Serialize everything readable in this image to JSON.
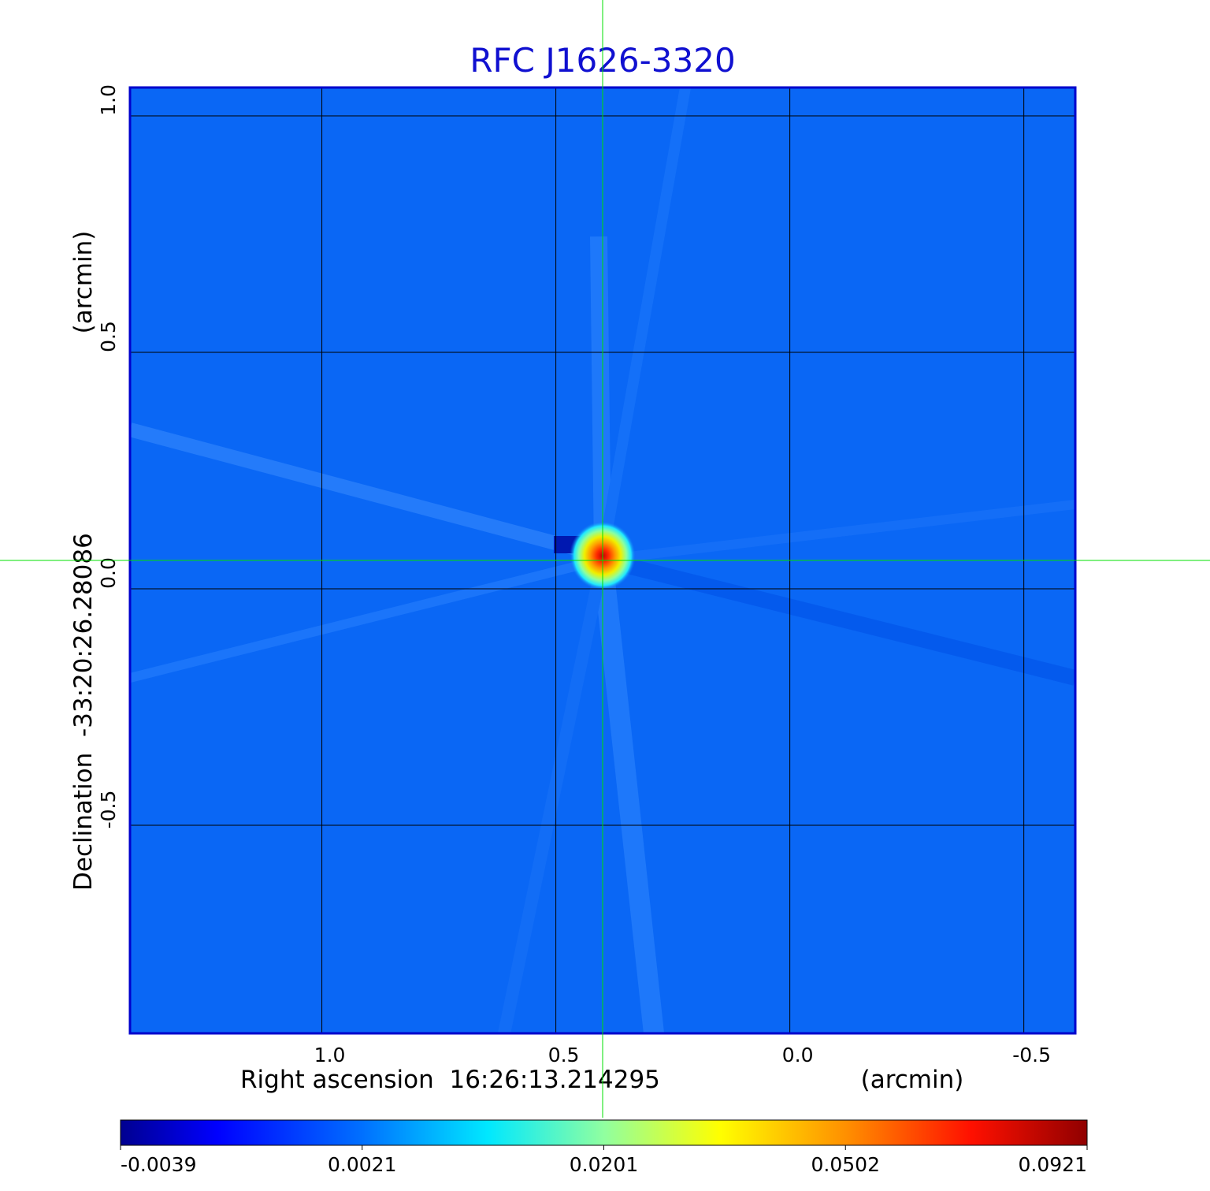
{
  "chart_data": {
    "type": "heatmap",
    "title": "RFC J1626-3320",
    "xlabel": "Right ascension  16:26:13.214295",
    "xunit": "(arcmin)",
    "ylabel": "Declination  -33:20:26.28086",
    "yunit": "(arcmin)",
    "x_ticks": [
      1.0,
      0.5,
      0.0,
      -0.5
    ],
    "x_tick_labels": [
      "1.0",
      "0.5",
      "0.0",
      "-0.5"
    ],
    "y_ticks": [
      1.0,
      0.5,
      0.0,
      -0.5
    ],
    "y_tick_labels": [
      "1.0",
      "0.5",
      "0.0",
      "-0.5"
    ],
    "x_range": [
      1.41,
      -0.61
    ],
    "y_range": [
      -0.94,
      1.06
    ],
    "grid": true,
    "crosshair": {
      "x": 0.4,
      "y": 0.06,
      "color": "#00e000"
    },
    "source_peak": {
      "x": 0.4,
      "y": 0.07,
      "value": 0.0921
    },
    "colorbar": {
      "colormap": "jet",
      "tick_labels": [
        "-0.0039",
        "0.0021",
        "0.0201",
        "0.0502",
        "0.0921"
      ],
      "min": -0.0039,
      "max": 0.0921
    },
    "background_color": "#0a67f5",
    "frame_color": "#0000cc",
    "title_color": "#1010d0"
  }
}
